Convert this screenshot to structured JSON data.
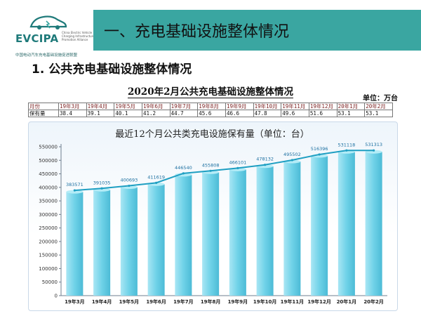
{
  "logo": {
    "name": "EVCIPA",
    "small_text": "China Electric Vehicle Charging Infrastructure Promotion Alliance",
    "cn": "中国电动汽车充电基础设施促进联盟"
  },
  "header": {
    "title": "一、充电基础设施整体情况",
    "banner_color": "#3aa6a1"
  },
  "section": {
    "title": "1. 公共充电基础设施整体情况"
  },
  "table": {
    "title": "2020年2月公共充电基础设施整体情况",
    "unit": "单位：万台",
    "row_header_month": "月份",
    "row_header_value": "保有量",
    "months": [
      "19年3月",
      "19年4月",
      "19年5月",
      "19年6月",
      "19年7月",
      "19年8月",
      "19年9月",
      "19年10月",
      "19年11月",
      "19年12月",
      "20年1月",
      "20年2月"
    ],
    "values": [
      "38.4",
      "39.1",
      "40.1",
      "41.2",
      "44.7",
      "45.6",
      "46.6",
      "47.8",
      "49.6",
      "51.6",
      "53.1",
      "53.1"
    ]
  },
  "chart_data": {
    "type": "bar",
    "title": "最近12个月公共类充电设施保有量（单位：台）",
    "categories": [
      "19年3月",
      "19年4月",
      "19年5月",
      "19年6月",
      "19年7月",
      "19年8月",
      "19年9月",
      "19年10月",
      "19年11月",
      "19年12月",
      "20年1月",
      "20年2月"
    ],
    "values": [
      383571,
      391035,
      400693,
      411619,
      446540,
      455808,
      466101,
      478132,
      495502,
      516396,
      531118,
      531313
    ],
    "line_overlay": true,
    "ylim": [
      0,
      550000
    ],
    "yticks": [
      0,
      50000,
      100000,
      150000,
      200000,
      250000,
      300000,
      350000,
      400000,
      450000,
      500000,
      550000
    ],
    "xlabel": "",
    "ylabel": "",
    "grid": false,
    "colors": {
      "bar": "#6fd2e8",
      "bar_top": "#b4ecf7",
      "line": "#1f9fc2",
      "axis": "#6f7f8f"
    }
  }
}
